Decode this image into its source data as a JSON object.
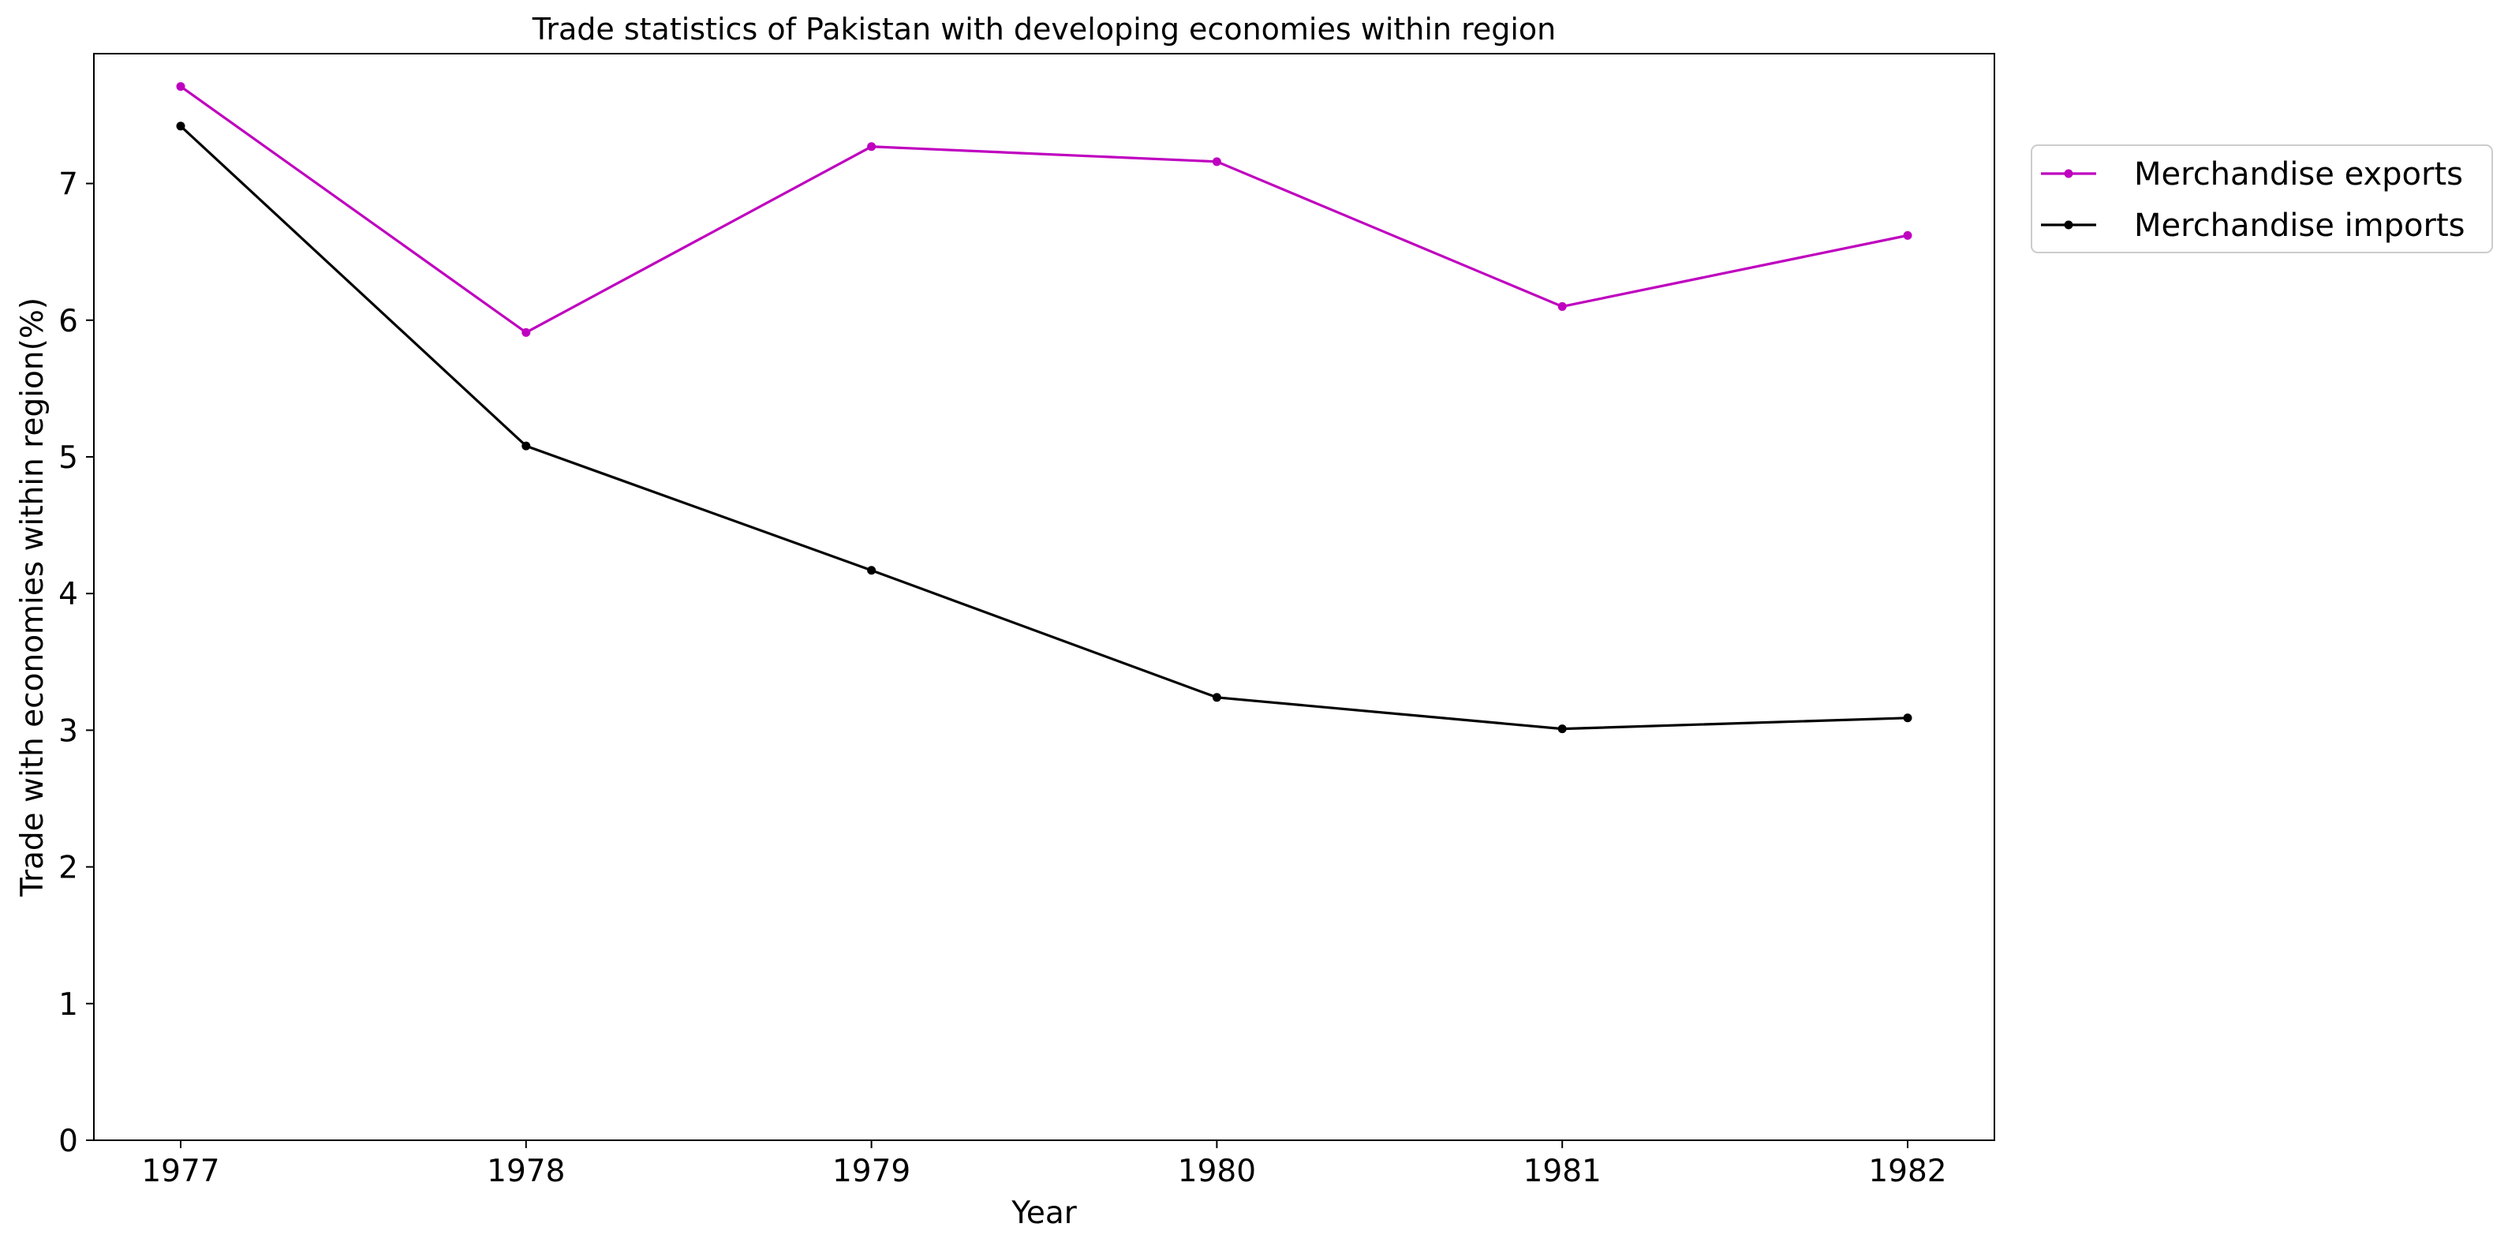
{
  "chart_data": {
    "type": "line",
    "title": "Trade statistics of Pakistan with developing economies within region",
    "xlabel": "Year",
    "ylabel": "Trade with economies within region(%)",
    "x": [
      "1977",
      "1978",
      "1979",
      "1980",
      "1981",
      "1982"
    ],
    "ylim": [
      0,
      7.95
    ],
    "yticks": [
      0,
      1,
      2,
      3,
      4,
      5,
      6,
      7
    ],
    "grid": false,
    "legend_position": "outside-top-right",
    "series": [
      {
        "name": "Merchandise exports",
        "color": "#bf00bf",
        "values": [
          7.71,
          5.91,
          7.27,
          7.16,
          6.1,
          6.62
        ]
      },
      {
        "name": "Merchandise imports",
        "color": "#000000",
        "values": [
          7.42,
          5.08,
          4.17,
          3.24,
          3.01,
          3.09
        ]
      }
    ]
  }
}
